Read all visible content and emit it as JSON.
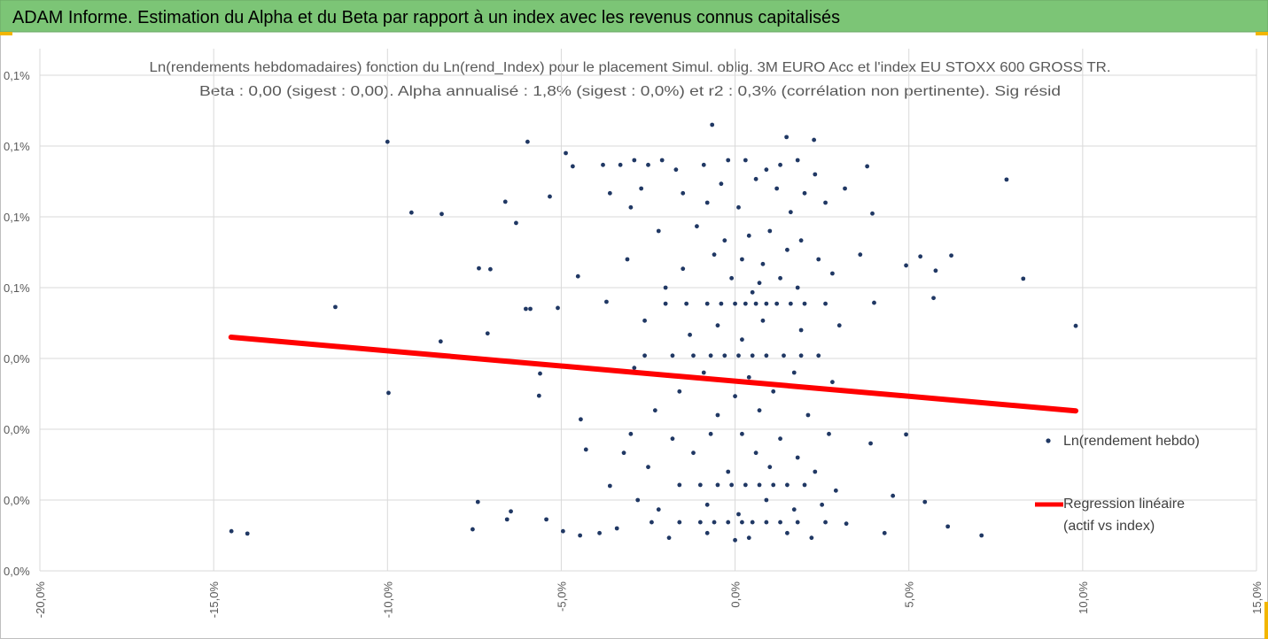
{
  "chart_data": {
    "type": "scatter",
    "title": "ADAM Informe. Estimation du Alpha et du Beta par rapport à un index avec les revenus connus capitalisés",
    "subtitle": [
      "Ln(rendements hebdomadaires) fonction du Ln(rend_Index) pour le placement Simul. oblig. 3M EURO Acc et l'index EU STOXX 600 GROSS TR.",
      "Beta : 0,00 (sigest : 0,00). Alpha annualisé : 1,8% (sigest : 0,0%) et r2 : 0,3% (corrélation non pertinente). Sig résid"
    ],
    "xlim": [
      -20,
      15
    ],
    "xticks": [
      {
        "value": -20,
        "label": "-20,0%"
      },
      {
        "value": -15,
        "label": "-15,0%"
      },
      {
        "value": -10,
        "label": "-10,0%"
      },
      {
        "value": -5,
        "label": "-5,0%"
      },
      {
        "value": 0,
        "label": "0,0%"
      },
      {
        "value": 5,
        "label": "5,0%"
      },
      {
        "value": 10,
        "label": "10,0%"
      },
      {
        "value": 15,
        "label": "15,0%"
      }
    ],
    "ylim": [
      0,
      0.105
    ],
    "yticks": [
      {
        "value": 0,
        "label": "0,0%"
      },
      {
        "value": 0.015,
        "label": "0,0%"
      },
      {
        "value": 0.03,
        "label": "0,0%"
      },
      {
        "value": 0.045,
        "label": "0,0%"
      },
      {
        "value": 0.06,
        "label": "0,1%"
      },
      {
        "value": 0.075,
        "label": "0,1%"
      },
      {
        "value": 0.09,
        "label": "0,1%"
      },
      {
        "value": 0.105,
        "label": "0,1%"
      }
    ],
    "grid": true,
    "legend": "right",
    "series": [
      {
        "name": "Ln(rendement hebdo)",
        "color": "#203864",
        "x": [
          -10.0,
          -5.97,
          -0.66,
          1.48,
          2.27,
          -9.31,
          -8.44,
          -6.61,
          -6.3,
          -5.33,
          -4.87,
          -4.67,
          7.81,
          -11.5,
          -8.47,
          -9.97,
          -7.37,
          -7.04,
          -14.49,
          -14.03,
          -7.4,
          -7.55,
          -6.45,
          -6.56,
          -7.12,
          -6.02,
          -5.89,
          -5.61,
          -5.64,
          -5.43,
          -5.15,
          -5.1,
          -4.52,
          -4.44,
          -4.29,
          -4.95,
          -4.46,
          4.92,
          5.33,
          5.77,
          5.71,
          6.22,
          8.29,
          9.8,
          4.92,
          5.46,
          6.12,
          7.09,
          4.54,
          3.8,
          3.95,
          3.16,
          -3.8,
          -3.3,
          -2.9,
          -2.5,
          -2.1,
          -1.7,
          -0.9,
          -0.2,
          0.3,
          0.9,
          1.3,
          1.8,
          2.3,
          -3.6,
          -2.7,
          -1.5,
          -0.4,
          0.6,
          1.2,
          2.0,
          -3.0,
          -0.8,
          0.1,
          1.6,
          2.6,
          -2.2,
          -1.1,
          -0.3,
          0.4,
          1.0,
          1.9,
          -0.6,
          0.2,
          0.8,
          1.5,
          2.4,
          3.6,
          -3.1,
          -1.5,
          -0.1,
          0.7,
          1.3,
          2.8,
          -2.0,
          0.5,
          1.8,
          -2.0,
          -1.4,
          -0.8,
          -0.4,
          0.0,
          0.3,
          0.6,
          0.9,
          1.2,
          1.6,
          2.0,
          2.6,
          -3.7,
          4.0,
          -2.6,
          -0.5,
          0.8,
          1.9,
          3.0,
          -1.3,
          0.2,
          -2.6,
          -1.8,
          -1.2,
          -0.7,
          -0.3,
          0.1,
          0.5,
          0.9,
          1.4,
          1.9,
          2.4,
          -2.9,
          -0.9,
          0.4,
          1.7,
          2.8,
          -1.6,
          0.0,
          1.1,
          3.5,
          -2.3,
          -0.5,
          0.7,
          2.1,
          -3.0,
          -1.8,
          -0.7,
          0.2,
          1.3,
          2.7,
          3.9,
          -3.2,
          -1.2,
          0.6,
          1.8,
          -2.5,
          -0.2,
          1.0,
          2.3,
          -1.6,
          -1.0,
          -0.5,
          -0.1,
          0.3,
          0.7,
          1.1,
          1.5,
          2.0,
          -3.6,
          2.9,
          -2.8,
          -0.8,
          0.9,
          2.5,
          -2.2,
          0.1,
          1.7,
          -2.4,
          -1.6,
          -1.0,
          -0.6,
          -0.2,
          0.2,
          0.5,
          0.9,
          1.3,
          1.8,
          2.6,
          3.2,
          -3.4,
          -0.8,
          0.4,
          1.5,
          -1.9,
          0.0,
          2.2,
          4.3,
          -3.9
        ],
        "values": [
          0.0909,
          0.0909,
          0.0945,
          0.0919,
          0.0913,
          0.0759,
          0.0756,
          0.0782,
          0.0737,
          0.0793,
          0.0885,
          0.0857,
          0.0829,
          0.0559,
          0.0486,
          0.0377,
          0.0641,
          0.0639,
          0.0084,
          0.0079,
          0.0146,
          0.0088,
          0.0126,
          0.0109,
          0.0503,
          0.0555,
          0.0555,
          0.0418,
          0.0371,
          0.0109,
          0.0435,
          0.0557,
          0.0624,
          0.0321,
          0.0257,
          0.0084,
          0.0075,
          0.0647,
          0.0666,
          0.0636,
          0.0578,
          0.0668,
          0.0619,
          0.0519,
          0.0289,
          0.0146,
          0.0094,
          0.0075,
          0.0159,
          0.0857,
          0.0757,
          0.081,
          0.086,
          0.086,
          0.087,
          0.086,
          0.087,
          0.085,
          0.086,
          0.087,
          0.087,
          0.085,
          0.086,
          0.087,
          0.084,
          0.08,
          0.081,
          0.08,
          0.082,
          0.083,
          0.081,
          0.08,
          0.077,
          0.078,
          0.077,
          0.076,
          0.078,
          0.072,
          0.073,
          0.07,
          0.071,
          0.072,
          0.07,
          0.067,
          0.066,
          0.065,
          0.068,
          0.066,
          0.067,
          0.066,
          0.064,
          0.062,
          0.061,
          0.062,
          0.063,
          0.06,
          0.059,
          0.06,
          0.0566,
          0.0566,
          0.0566,
          0.0566,
          0.0566,
          0.0566,
          0.0566,
          0.0566,
          0.0566,
          0.0566,
          0.0566,
          0.0566,
          0.057,
          0.0568,
          0.053,
          0.052,
          0.053,
          0.051,
          0.052,
          0.05,
          0.049,
          0.0456,
          0.0456,
          0.0456,
          0.0456,
          0.0456,
          0.0456,
          0.0456,
          0.0456,
          0.0456,
          0.0456,
          0.0456,
          0.043,
          0.042,
          0.041,
          0.042,
          0.04,
          0.038,
          0.037,
          0.038,
          0.038,
          0.034,
          0.033,
          0.034,
          0.033,
          0.029,
          0.028,
          0.029,
          0.029,
          0.028,
          0.029,
          0.027,
          0.025,
          0.025,
          0.025,
          0.024,
          0.022,
          0.021,
          0.022,
          0.021,
          0.0182,
          0.0182,
          0.0182,
          0.0182,
          0.0182,
          0.0182,
          0.0182,
          0.0182,
          0.0182,
          0.018,
          0.017,
          0.015,
          0.014,
          0.015,
          0.014,
          0.013,
          0.012,
          0.013,
          0.0103,
          0.0103,
          0.0103,
          0.0103,
          0.0103,
          0.0103,
          0.0103,
          0.0103,
          0.0103,
          0.0103,
          0.0103,
          0.01,
          0.009,
          0.008,
          0.007,
          0.008,
          0.007,
          0.0065,
          0.007,
          0.008,
          0.008
        ]
      },
      {
        "name": "Regression linéaire (actif vs index)",
        "color": "#ff0000",
        "type": "line",
        "x": [
          -14.5,
          9.8
        ],
        "values": [
          0.0495,
          0.0339
        ]
      }
    ]
  }
}
